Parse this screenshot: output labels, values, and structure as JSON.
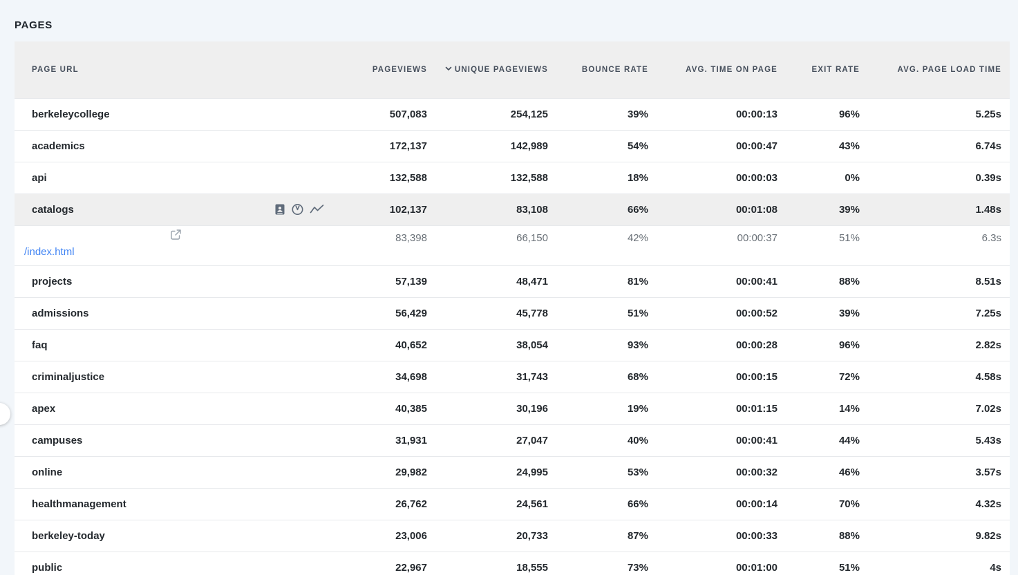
{
  "page": {
    "title": "PAGES"
  },
  "colors": {
    "page_background": "#f2f6fa",
    "header_background": "#efefef",
    "highlight_row_background": "#efefef",
    "link": "#4285f4",
    "value_text": "#24292e",
    "muted_text": "#697077",
    "icon": "#5f6b7a"
  },
  "table": {
    "columns": [
      {
        "key": "url",
        "label": "PAGE URL",
        "align": "left",
        "sorted": false
      },
      {
        "key": "pageviews",
        "label": "PAGEVIEWS",
        "align": "right",
        "sorted": false
      },
      {
        "key": "unique_pageviews",
        "label": "UNIQUE PAGEVIEWS",
        "align": "right",
        "sorted": true
      },
      {
        "key": "bounce_rate",
        "label": "BOUNCE RATE",
        "align": "right",
        "sorted": false
      },
      {
        "key": "avg_time_on_page",
        "label": "AVG. TIME ON PAGE",
        "align": "right",
        "sorted": false
      },
      {
        "key": "exit_rate",
        "label": "EXIT RATE",
        "align": "right",
        "sorted": false
      },
      {
        "key": "avg_page_load_time",
        "label": "AVG. PAGE LOAD TIME",
        "align": "right",
        "sorted": false
      }
    ],
    "rows": [
      {
        "url": "berkeleycollege",
        "pageviews": "507,083",
        "unique_pageviews": "254,125",
        "bounce_rate": "39%",
        "avg_time_on_page": "00:00:13",
        "exit_rate": "96%",
        "avg_page_load_time": "5.25s"
      },
      {
        "url": "academics",
        "pageviews": "172,137",
        "unique_pageviews": "142,989",
        "bounce_rate": "54%",
        "avg_time_on_page": "00:00:47",
        "exit_rate": "43%",
        "avg_page_load_time": "6.74s"
      },
      {
        "url": "api",
        "pageviews": "132,588",
        "unique_pageviews": "132,588",
        "bounce_rate": "18%",
        "avg_time_on_page": "00:00:03",
        "exit_rate": "0%",
        "avg_page_load_time": "0.39s"
      },
      {
        "url": "catalogs",
        "highlighted": true,
        "hover_icons": [
          "contact-card-icon",
          "page-speed-icon",
          "trend-line-icon"
        ],
        "pageviews": "102,137",
        "unique_pageviews": "83,108",
        "bounce_rate": "66%",
        "avg_time_on_page": "00:01:08",
        "exit_rate": "39%",
        "avg_page_load_time": "1.48s"
      },
      {
        "url": "/index.html",
        "type": "subpage",
        "external_link_icon": true,
        "pageviews": "83,398",
        "unique_pageviews": "66,150",
        "bounce_rate": "42%",
        "avg_time_on_page": "00:00:37",
        "exit_rate": "51%",
        "avg_page_load_time": "6.3s"
      },
      {
        "url": "projects",
        "pageviews": "57,139",
        "unique_pageviews": "48,471",
        "bounce_rate": "81%",
        "avg_time_on_page": "00:00:41",
        "exit_rate": "88%",
        "avg_page_load_time": "8.51s"
      },
      {
        "url": "admissions",
        "pageviews": "56,429",
        "unique_pageviews": "45,778",
        "bounce_rate": "51%",
        "avg_time_on_page": "00:00:52",
        "exit_rate": "39%",
        "avg_page_load_time": "7.25s"
      },
      {
        "url": "faq",
        "pageviews": "40,652",
        "unique_pageviews": "38,054",
        "bounce_rate": "93%",
        "avg_time_on_page": "00:00:28",
        "exit_rate": "96%",
        "avg_page_load_time": "2.82s"
      },
      {
        "url": "criminaljustice",
        "pageviews": "34,698",
        "unique_pageviews": "31,743",
        "bounce_rate": "68%",
        "avg_time_on_page": "00:00:15",
        "exit_rate": "72%",
        "avg_page_load_time": "4.58s"
      },
      {
        "url": "apex",
        "pageviews": "40,385",
        "unique_pageviews": "30,196",
        "bounce_rate": "19%",
        "avg_time_on_page": "00:01:15",
        "exit_rate": "14%",
        "avg_page_load_time": "7.02s"
      },
      {
        "url": "campuses",
        "pageviews": "31,931",
        "unique_pageviews": "27,047",
        "bounce_rate": "40%",
        "avg_time_on_page": "00:00:41",
        "exit_rate": "44%",
        "avg_page_load_time": "5.43s"
      },
      {
        "url": "online",
        "pageviews": "29,982",
        "unique_pageviews": "24,995",
        "bounce_rate": "53%",
        "avg_time_on_page": "00:00:32",
        "exit_rate": "46%",
        "avg_page_load_time": "3.57s"
      },
      {
        "url": "healthmanagement",
        "pageviews": "26,762",
        "unique_pageviews": "24,561",
        "bounce_rate": "66%",
        "avg_time_on_page": "00:00:14",
        "exit_rate": "70%",
        "avg_page_load_time": "4.32s"
      },
      {
        "url": "berkeley-today",
        "pageviews": "23,006",
        "unique_pageviews": "20,733",
        "bounce_rate": "87%",
        "avg_time_on_page": "00:00:33",
        "exit_rate": "88%",
        "avg_page_load_time": "9.82s"
      },
      {
        "url": "public",
        "pageviews": "22,967",
        "unique_pageviews": "18,555",
        "bounce_rate": "73%",
        "avg_time_on_page": "00:01:00",
        "exit_rate": "51%",
        "avg_page_load_time": "4s"
      }
    ]
  },
  "floating_button": {
    "visible": true
  }
}
